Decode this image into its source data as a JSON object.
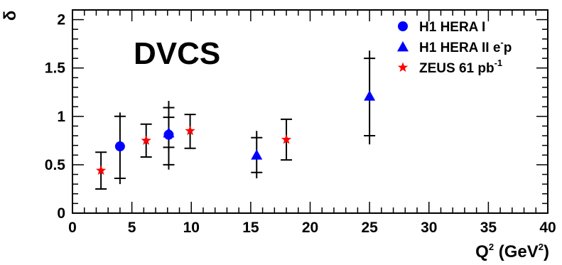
{
  "chart_data": {
    "type": "scatter",
    "title": "",
    "annotation": "DVCS",
    "xlabel": {
      "main": "Q",
      "sup": "2",
      "unit_open": " (GeV",
      "unit_sup": "2",
      "unit_close": ")"
    },
    "ylabel": "δ",
    "xlim": [
      0,
      40
    ],
    "ylim": [
      0,
      2.1
    ],
    "x_ticks": [
      {
        "value": 0,
        "label": "0"
      },
      {
        "value": 5,
        "label": "5"
      },
      {
        "value": 10,
        "label": "10"
      },
      {
        "value": 15,
        "label": "15"
      },
      {
        "value": 20,
        "label": "20"
      },
      {
        "value": 25,
        "label": "25"
      },
      {
        "value": 30,
        "label": "30"
      },
      {
        "value": 35,
        "label": "35"
      },
      {
        "value": 40,
        "label": "40"
      }
    ],
    "y_ticks": [
      {
        "value": 0,
        "label": "0"
      },
      {
        "value": 0.5,
        "label": "0.5"
      },
      {
        "value": 1,
        "label": "1"
      },
      {
        "value": 1.5,
        "label": "1.5"
      },
      {
        "value": 2,
        "label": "2"
      }
    ],
    "grid": false,
    "legend_position": "top-right",
    "series": [
      {
        "name": "H1 HERA I",
        "legend_label": {
          "text": "H1 HERA I",
          "sup": "",
          "after": ""
        },
        "marker": "circle",
        "color": "#0000ff",
        "points": [
          {
            "x": 4.0,
            "y": 0.69,
            "stat_lo": 0.36,
            "stat_hi": 1.0,
            "tot_lo": 0.3,
            "tot_hi": 1.04
          },
          {
            "x": 8.1,
            "y": 0.81,
            "stat_lo": 0.5,
            "stat_hi": 1.09,
            "tot_lo": 0.45,
            "tot_hi": 1.16
          }
        ]
      },
      {
        "name": "H1 HERA II e-p",
        "legend_label": {
          "text": "H1 HERA II e",
          "sup": "-",
          "after": "p"
        },
        "marker": "triangle",
        "color": "#0000ff",
        "points": [
          {
            "x": 8.1,
            "y": 0.83,
            "stat_lo": 0.68,
            "stat_hi": 0.99,
            "tot_lo": 0.64,
            "tot_hi": 1.03
          },
          {
            "x": 15.5,
            "y": 0.6,
            "stat_lo": 0.42,
            "stat_hi": 0.78,
            "tot_lo": 0.36,
            "tot_hi": 0.85
          },
          {
            "x": 25.0,
            "y": 1.21,
            "stat_lo": 0.8,
            "stat_hi": 1.6,
            "tot_lo": 0.71,
            "tot_hi": 1.68
          }
        ]
      },
      {
        "name": "ZEUS 61 pb-1",
        "legend_label": {
          "text": "ZEUS 61 pb",
          "sup": "-1",
          "after": ""
        },
        "marker": "star",
        "color": "#ff0000",
        "points": [
          {
            "x": 2.4,
            "y": 0.44,
            "stat_lo": 0.25,
            "stat_hi": 0.63,
            "tot_lo": 0.25,
            "tot_hi": 0.63
          },
          {
            "x": 6.2,
            "y": 0.75,
            "stat_lo": 0.58,
            "stat_hi": 0.92,
            "tot_lo": 0.58,
            "tot_hi": 0.92
          },
          {
            "x": 9.9,
            "y": 0.85,
            "stat_lo": 0.67,
            "stat_hi": 1.02,
            "tot_lo": 0.67,
            "tot_hi": 1.02
          },
          {
            "x": 18.0,
            "y": 0.76,
            "stat_lo": 0.55,
            "stat_hi": 0.97,
            "tot_lo": 0.55,
            "tot_hi": 0.97
          }
        ]
      }
    ]
  }
}
